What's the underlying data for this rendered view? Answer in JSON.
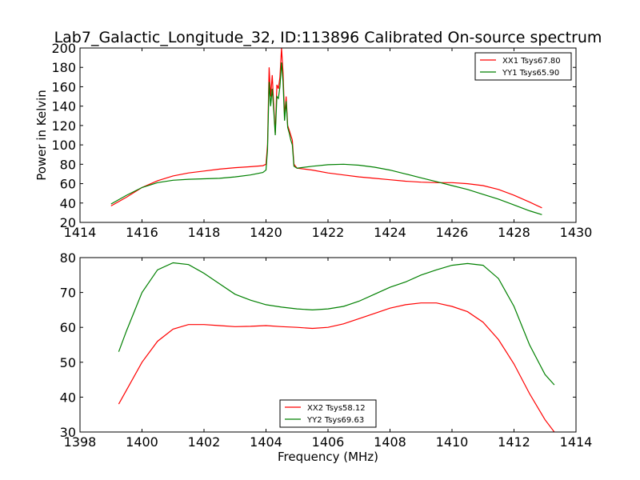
{
  "chart_data": [
    {
      "type": "line",
      "title": "Lab7_Galactic_Longitude_32, ID:113896 Calibrated On-source spectrum",
      "xlabel": "",
      "ylabel": "Power in Kelvin",
      "xlim": [
        1414,
        1430
      ],
      "ylim": [
        20,
        200
      ],
      "xticks": [
        "1414",
        "1416",
        "1418",
        "1420",
        "1422",
        "1424",
        "1426",
        "1428",
        "1430"
      ],
      "yticks": [
        "20",
        "40",
        "60",
        "80",
        "100",
        "120",
        "140",
        "160",
        "180",
        "200"
      ],
      "legend": "top-right",
      "grid": false,
      "series": [
        {
          "name": "XX1 Tsys67.80",
          "color": "#ff0000",
          "x": [
            1415.0,
            1415.5,
            1416.0,
            1416.5,
            1417.0,
            1417.5,
            1418.0,
            1418.5,
            1419.0,
            1419.5,
            1419.9,
            1420.0,
            1420.05,
            1420.1,
            1420.15,
            1420.2,
            1420.25,
            1420.3,
            1420.35,
            1420.4,
            1420.45,
            1420.5,
            1420.55,
            1420.6,
            1420.65,
            1420.7,
            1420.75,
            1420.8,
            1420.85,
            1420.9,
            1421.0,
            1421.5,
            1422.0,
            1422.5,
            1423.0,
            1423.5,
            1424.0,
            1424.5,
            1425.0,
            1425.5,
            1426.0,
            1426.5,
            1427.0,
            1427.5,
            1428.0,
            1428.5,
            1428.9
          ],
          "values": [
            37,
            46,
            56,
            63,
            68,
            71,
            73,
            75,
            76.5,
            77.5,
            78.5,
            80,
            100,
            180,
            150,
            172,
            140,
            112,
            162,
            158,
            170,
            200,
            175,
            130,
            150,
            120,
            115,
            110,
            105,
            80,
            76,
            74,
            71,
            69,
            67,
            65.5,
            64,
            62.5,
            61.5,
            61,
            61,
            60,
            58,
            54,
            48,
            41,
            35
          ]
        },
        {
          "name": "YY1 Tsys65.90",
          "color": "#008000",
          "x": [
            1415.0,
            1415.5,
            1416.0,
            1416.5,
            1417.0,
            1417.5,
            1418.0,
            1418.5,
            1419.0,
            1419.5,
            1419.9,
            1420.0,
            1420.05,
            1420.1,
            1420.15,
            1420.2,
            1420.25,
            1420.3,
            1420.35,
            1420.4,
            1420.45,
            1420.5,
            1420.55,
            1420.6,
            1420.65,
            1420.7,
            1420.75,
            1420.8,
            1420.85,
            1420.9,
            1421.0,
            1421.5,
            1422.0,
            1422.5,
            1423.0,
            1423.5,
            1424.0,
            1424.5,
            1425.0,
            1425.5,
            1426.0,
            1426.5,
            1427.0,
            1427.5,
            1428.0,
            1428.5,
            1428.9
          ],
          "values": [
            39,
            48,
            56,
            61,
            63.5,
            64.5,
            65,
            65.5,
            67,
            69,
            71.5,
            74,
            95,
            165,
            140,
            158,
            135,
            110,
            150,
            148,
            160,
            185,
            165,
            125,
            145,
            118,
            112,
            105,
            100,
            78,
            76,
            78,
            79.5,
            80,
            79,
            77,
            74,
            70,
            66,
            62,
            58,
            54,
            49,
            44,
            38,
            32,
            28
          ]
        }
      ]
    },
    {
      "type": "line",
      "title": "",
      "xlabel": "Frequency (MHz)",
      "ylabel": "",
      "xlim": [
        1398,
        1414
      ],
      "ylim": [
        30,
        80
      ],
      "xticks": [
        "1398",
        "1400",
        "1402",
        "1404",
        "1406",
        "1408",
        "1410",
        "1412",
        "1414"
      ],
      "yticks": [
        "30",
        "40",
        "50",
        "60",
        "70",
        "80"
      ],
      "legend": "bottom-center",
      "grid": false,
      "series": [
        {
          "name": "XX2 Tsys58.12",
          "color": "#ff0000",
          "x": [
            1399.25,
            1399.5,
            1400.0,
            1400.5,
            1401.0,
            1401.5,
            1402.0,
            1402.5,
            1403.0,
            1403.5,
            1404.0,
            1404.5,
            1405.0,
            1405.5,
            1406.0,
            1406.5,
            1407.0,
            1407.5,
            1408.0,
            1408.5,
            1409.0,
            1409.5,
            1410.0,
            1410.5,
            1411.0,
            1411.5,
            1412.0,
            1412.5,
            1413.0,
            1413.3
          ],
          "values": [
            38,
            42,
            50,
            56,
            59.5,
            60.8,
            60.8,
            60.5,
            60.2,
            60.3,
            60.5,
            60.2,
            60,
            59.7,
            60,
            61,
            62.5,
            64,
            65.5,
            66.5,
            67,
            67,
            66,
            64.5,
            61.5,
            56.5,
            49.5,
            41,
            33.5,
            30
          ]
        },
        {
          "name": "YY2 Tsys69.63",
          "color": "#008000",
          "x": [
            1399.25,
            1399.5,
            1400.0,
            1400.5,
            1401.0,
            1401.5,
            1402.0,
            1402.5,
            1403.0,
            1403.5,
            1404.0,
            1404.5,
            1405.0,
            1405.5,
            1406.0,
            1406.5,
            1407.0,
            1407.5,
            1408.0,
            1408.5,
            1409.0,
            1409.5,
            1410.0,
            1410.5,
            1411.0,
            1411.5,
            1412.0,
            1412.5,
            1413.0,
            1413.3
          ],
          "values": [
            53,
            59,
            70,
            76.5,
            78.5,
            78,
            75.5,
            72.5,
            69.5,
            67.8,
            66.5,
            65.8,
            65.3,
            65,
            65.3,
            66,
            67.5,
            69.5,
            71.5,
            73,
            75,
            76.5,
            77.8,
            78.3,
            77.8,
            74,
            66,
            55,
            46.5,
            43.5
          ]
        }
      ]
    }
  ]
}
